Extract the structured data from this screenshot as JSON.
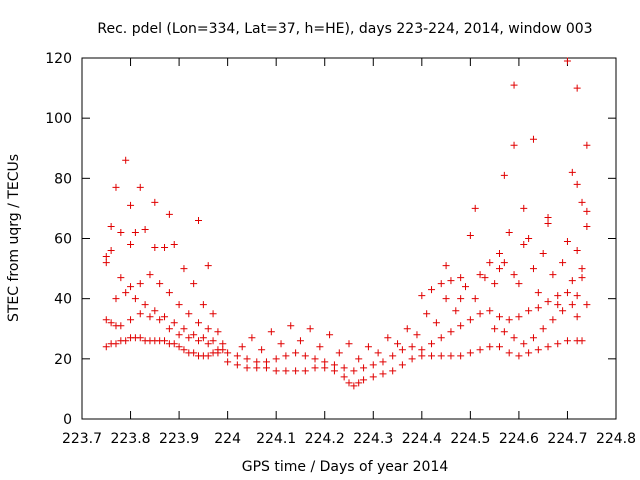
{
  "chart_data": {
    "type": "scatter",
    "title": "Rec. pdel (Lon=334, Lat=37, h=HE), days 223-224, 2014, window 003",
    "xlabel": "GPS time / Days of year 2014",
    "ylabel": "STEC from uqrg / TECUs",
    "xlim": [
      223.7,
      224.8
    ],
    "ylim": [
      0,
      120
    ],
    "x_ticks": [
      223.7,
      223.8,
      223.9,
      224.0,
      224.1,
      224.2,
      224.3,
      224.4,
      224.5,
      224.6,
      224.7,
      224.8
    ],
    "x_tick_labels": [
      "223.7",
      "223.8",
      "223.9",
      "224",
      "224.1",
      "224.2",
      "224.3",
      "224.4",
      "224.5",
      "224.6",
      "224.7",
      "224.8"
    ],
    "y_ticks": [
      0,
      20,
      40,
      60,
      80,
      100,
      120
    ],
    "y_tick_labels": [
      "0",
      "20",
      "40",
      "60",
      "80",
      "100",
      "120"
    ],
    "grid": false,
    "legend": "none",
    "marker": "plus",
    "color": "#e00000",
    "series": [
      {
        "name": "",
        "points": [
          [
            223.75,
            24
          ],
          [
            223.76,
            25
          ],
          [
            223.77,
            25
          ],
          [
            223.78,
            26
          ],
          [
            223.79,
            26
          ],
          [
            223.8,
            27
          ],
          [
            223.81,
            27
          ],
          [
            223.82,
            27
          ],
          [
            223.83,
            26
          ],
          [
            223.84,
            26
          ],
          [
            223.85,
            26
          ],
          [
            223.86,
            26
          ],
          [
            223.87,
            26
          ],
          [
            223.88,
            25
          ],
          [
            223.89,
            25
          ],
          [
            223.9,
            24
          ],
          [
            223.91,
            23
          ],
          [
            223.92,
            22
          ],
          [
            223.93,
            22
          ],
          [
            223.94,
            21
          ],
          [
            223.95,
            21
          ],
          [
            223.96,
            21
          ],
          [
            223.97,
            22
          ],
          [
            223.98,
            22
          ],
          [
            223.99,
            23
          ],
          [
            224.0,
            19
          ],
          [
            224.02,
            18
          ],
          [
            224.04,
            17
          ],
          [
            224.06,
            17
          ],
          [
            224.08,
            17
          ],
          [
            224.1,
            16
          ],
          [
            224.12,
            16
          ],
          [
            224.14,
            16
          ],
          [
            224.16,
            16
          ],
          [
            224.18,
            17
          ],
          [
            224.2,
            17
          ],
          [
            224.22,
            16
          ],
          [
            224.24,
            14
          ],
          [
            224.25,
            12
          ],
          [
            224.26,
            11
          ],
          [
            224.27,
            12
          ],
          [
            224.28,
            13
          ],
          [
            224.3,
            14
          ],
          [
            224.32,
            15
          ],
          [
            224.34,
            16
          ],
          [
            224.36,
            18
          ],
          [
            224.38,
            20
          ],
          [
            224.4,
            21
          ],
          [
            224.42,
            21
          ],
          [
            224.44,
            21
          ],
          [
            224.46,
            21
          ],
          [
            224.48,
            21
          ],
          [
            224.5,
            22
          ],
          [
            224.52,
            23
          ],
          [
            224.54,
            24
          ],
          [
            224.56,
            24
          ],
          [
            224.58,
            22
          ],
          [
            224.6,
            21
          ],
          [
            224.62,
            22
          ],
          [
            224.64,
            23
          ],
          [
            224.66,
            24
          ],
          [
            224.68,
            25
          ],
          [
            224.7,
            26
          ],
          [
            224.72,
            26
          ],
          [
            224.73,
            26
          ],
          [
            223.75,
            33
          ],
          [
            223.76,
            32
          ],
          [
            223.77,
            31
          ],
          [
            223.78,
            31
          ],
          [
            223.8,
            33
          ],
          [
            223.82,
            35
          ],
          [
            223.84,
            34
          ],
          [
            223.86,
            33
          ],
          [
            223.88,
            30
          ],
          [
            223.9,
            28
          ],
          [
            223.92,
            27
          ],
          [
            223.94,
            26
          ],
          [
            223.96,
            25
          ],
          [
            223.98,
            23
          ],
          [
            224.0,
            22
          ],
          [
            224.02,
            21
          ],
          [
            224.04,
            20
          ],
          [
            224.06,
            19
          ],
          [
            224.08,
            19
          ],
          [
            224.1,
            20
          ],
          [
            224.12,
            21
          ],
          [
            224.14,
            22
          ],
          [
            224.16,
            21
          ],
          [
            224.18,
            20
          ],
          [
            224.2,
            19
          ],
          [
            224.22,
            18
          ],
          [
            224.24,
            17
          ],
          [
            224.26,
            16
          ],
          [
            224.28,
            17
          ],
          [
            224.3,
            18
          ],
          [
            224.32,
            19
          ],
          [
            224.34,
            21
          ],
          [
            224.36,
            23
          ],
          [
            224.38,
            24
          ],
          [
            224.4,
            23
          ],
          [
            224.42,
            25
          ],
          [
            224.44,
            27
          ],
          [
            224.46,
            29
          ],
          [
            224.48,
            31
          ],
          [
            224.5,
            33
          ],
          [
            224.52,
            35
          ],
          [
            224.54,
            36
          ],
          [
            224.56,
            34
          ],
          [
            224.58,
            33
          ],
          [
            224.6,
            34
          ],
          [
            224.62,
            36
          ],
          [
            224.64,
            37
          ],
          [
            224.66,
            39
          ],
          [
            224.68,
            41
          ],
          [
            224.7,
            42
          ],
          [
            224.72,
            41
          ],
          [
            223.77,
            40
          ],
          [
            223.79,
            42
          ],
          [
            223.81,
            40
          ],
          [
            223.83,
            38
          ],
          [
            223.85,
            36
          ],
          [
            223.87,
            34
          ],
          [
            223.89,
            32
          ],
          [
            223.91,
            30
          ],
          [
            223.93,
            28
          ],
          [
            223.95,
            27
          ],
          [
            223.97,
            26
          ],
          [
            223.99,
            25
          ],
          [
            224.03,
            24
          ],
          [
            224.07,
            23
          ],
          [
            224.11,
            25
          ],
          [
            224.15,
            26
          ],
          [
            224.19,
            24
          ],
          [
            224.23,
            22
          ],
          [
            224.27,
            20
          ],
          [
            224.31,
            22
          ],
          [
            224.35,
            25
          ],
          [
            224.39,
            28
          ],
          [
            224.43,
            32
          ],
          [
            224.47,
            36
          ],
          [
            224.51,
            40
          ],
          [
            224.55,
            45
          ],
          [
            224.59,
            48
          ],
          [
            224.63,
            50
          ],
          [
            224.67,
            48
          ],
          [
            224.71,
            46
          ],
          [
            223.78,
            47
          ],
          [
            223.8,
            44
          ],
          [
            223.82,
            45
          ],
          [
            223.84,
            48
          ],
          [
            223.86,
            45
          ],
          [
            223.88,
            42
          ],
          [
            223.9,
            38
          ],
          [
            223.92,
            35
          ],
          [
            223.94,
            32
          ],
          [
            223.96,
            30
          ],
          [
            223.98,
            29
          ],
          [
            224.05,
            27
          ],
          [
            224.09,
            29
          ],
          [
            224.13,
            31
          ],
          [
            224.17,
            30
          ],
          [
            224.21,
            28
          ],
          [
            224.25,
            25
          ],
          [
            224.29,
            24
          ],
          [
            224.33,
            27
          ],
          [
            224.37,
            30
          ],
          [
            224.41,
            35
          ],
          [
            224.45,
            40
          ],
          [
            224.49,
            44
          ],
          [
            224.53,
            47
          ],
          [
            224.57,
            52
          ],
          [
            224.61,
            58
          ],
          [
            224.65,
            55
          ],
          [
            224.69,
            52
          ],
          [
            224.73,
            50
          ],
          [
            223.75,
            52
          ],
          [
            223.76,
            56
          ],
          [
            223.78,
            62
          ],
          [
            223.8,
            58
          ],
          [
            223.81,
            62
          ],
          [
            223.83,
            63
          ],
          [
            223.85,
            57
          ],
          [
            223.87,
            57
          ],
          [
            223.89,
            58
          ],
          [
            223.91,
            50
          ],
          [
            223.93,
            45
          ],
          [
            223.95,
            38
          ],
          [
            223.97,
            35
          ],
          [
            224.48,
            40
          ],
          [
            224.52,
            48
          ],
          [
            224.56,
            55
          ],
          [
            224.58,
            62
          ],
          [
            224.62,
            60
          ],
          [
            224.66,
            65
          ],
          [
            224.7,
            59
          ],
          [
            224.72,
            56
          ],
          [
            223.75,
            54
          ],
          [
            223.76,
            64
          ],
          [
            223.77,
            77
          ],
          [
            223.79,
            86
          ],
          [
            223.8,
            71
          ],
          [
            223.82,
            77
          ],
          [
            223.85,
            72
          ],
          [
            223.88,
            68
          ],
          [
            223.94,
            66
          ],
          [
            223.96,
            51
          ],
          [
            224.45,
            51
          ],
          [
            224.5,
            61
          ],
          [
            224.51,
            70
          ],
          [
            224.57,
            81
          ],
          [
            224.59,
            91
          ],
          [
            224.59,
            111
          ],
          [
            224.61,
            70
          ],
          [
            224.63,
            93
          ],
          [
            224.66,
            67
          ],
          [
            224.7,
            119
          ],
          [
            224.71,
            82
          ],
          [
            224.72,
            110
          ],
          [
            224.72,
            78
          ],
          [
            224.73,
            72
          ],
          [
            224.74,
            91
          ],
          [
            224.74,
            69
          ],
          [
            224.74,
            64
          ],
          [
            224.4,
            41
          ],
          [
            224.42,
            43
          ],
          [
            224.44,
            45
          ],
          [
            224.46,
            46
          ],
          [
            224.48,
            47
          ],
          [
            224.54,
            52
          ],
          [
            224.56,
            50
          ],
          [
            224.6,
            45
          ],
          [
            224.64,
            42
          ],
          [
            224.68,
            38
          ],
          [
            224.72,
            34
          ],
          [
            224.74,
            38
          ],
          [
            224.55,
            30
          ],
          [
            224.57,
            29
          ],
          [
            224.59,
            27
          ],
          [
            224.61,
            25
          ],
          [
            224.63,
            27
          ],
          [
            224.65,
            30
          ],
          [
            224.67,
            33
          ],
          [
            224.69,
            36
          ],
          [
            224.71,
            38
          ],
          [
            224.73,
            47
          ]
        ]
      }
    ]
  }
}
